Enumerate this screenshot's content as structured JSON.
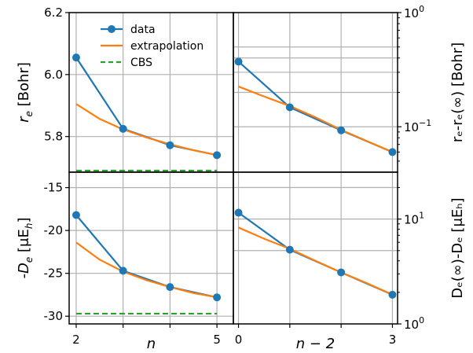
{
  "chart_data": [
    {
      "panel": "top-left",
      "type": "line",
      "xlabel": "",
      "ylabel_main": "r",
      "ylabel_sub": "e",
      "ylabel_unit": " [Bohr]",
      "xlim": [
        1.85,
        5.35
      ],
      "ylim": [
        5.685,
        6.2
      ],
      "xgrid": [
        2,
        3,
        4,
        5
      ],
      "yticks": [
        5.8,
        6.0,
        6.2
      ],
      "ytick_labels": [
        "5.8",
        "6.0",
        "6.2"
      ],
      "ygrid": [
        5.8,
        6.0,
        6.2
      ],
      "series": [
        {
          "name": "data",
          "kind": "data",
          "x": [
            2,
            3,
            4,
            5
          ],
          "y": [
            6.055,
            5.825,
            5.772,
            5.74
          ]
        },
        {
          "name": "extrapolation",
          "kind": "fit",
          "x": [
            2,
            2.5,
            3,
            3.5,
            4,
            4.5,
            5
          ],
          "y": [
            5.905,
            5.857,
            5.823,
            5.797,
            5.775,
            5.756,
            5.74
          ]
        },
        {
          "name": "CBS",
          "kind": "cbs",
          "x": [
            2,
            5
          ],
          "y": [
            5.69,
            5.69
          ]
        }
      ],
      "legend": {
        "placement": "top-left",
        "entries": [
          "data",
          "extrapolation",
          "CBS"
        ]
      }
    },
    {
      "panel": "top-right",
      "type": "line",
      "scale": "log",
      "ylabel_right": "rₑ-rₑ(∞) [Bohr]",
      "xlim": [
        -0.1,
        3.1
      ],
      "ylim": [
        0.04,
        1.0
      ],
      "xgrid": [
        0,
        1,
        2,
        3
      ],
      "yticks": [
        0.1,
        1.0
      ],
      "ytick_labels_base": [
        "10",
        "10"
      ],
      "ytick_labels_exp": [
        "−1",
        "0"
      ],
      "ygrid": [
        0.1,
        0.2,
        0.3,
        0.4,
        0.5,
        1.0
      ],
      "series": [
        {
          "name": "data",
          "kind": "data",
          "x": [
            0,
            1,
            2,
            3
          ],
          "y": [
            0.372,
            0.148,
            0.093,
            0.06
          ]
        },
        {
          "name": "extrapolation",
          "kind": "fit",
          "x": [
            0,
            0.5,
            1,
            1.5,
            2,
            2.5,
            3
          ],
          "y": [
            0.225,
            0.184,
            0.152,
            0.121,
            0.094,
            0.075,
            0.06
          ]
        }
      ]
    },
    {
      "panel": "bottom-left",
      "type": "line",
      "xlabel": "n",
      "ylabel_main": "-D",
      "ylabel_sub": "e",
      "ylabel_unit": " [μE",
      "ylabel_unit_sub": "h",
      "ylabel_close": "]",
      "xlim": [
        1.85,
        5.35
      ],
      "ylim": [
        -30.9,
        -13.2
      ],
      "xticks": [
        2,
        5
      ],
      "xtick_labels": [
        "2",
        "5"
      ],
      "xgrid": [
        2,
        3,
        4,
        5
      ],
      "yticks": [
        -30,
        -25,
        -20,
        -15
      ],
      "ytick_labels": [
        "-30",
        "-25",
        "-20",
        "-15"
      ],
      "ygrid": [
        -30,
        -25,
        -20,
        -15
      ],
      "series": [
        {
          "name": "data",
          "kind": "data",
          "x": [
            2,
            3,
            4,
            5
          ],
          "y": [
            -18.2,
            -24.7,
            -26.6,
            -27.8
          ]
        },
        {
          "name": "extrapolation",
          "kind": "fit",
          "x": [
            2,
            2.5,
            3,
            3.5,
            4,
            4.5,
            5
          ],
          "y": [
            -21.4,
            -23.4,
            -24.8,
            -25.8,
            -26.6,
            -27.3,
            -27.8
          ]
        },
        {
          "name": "CBS",
          "kind": "cbs",
          "x": [
            2,
            5
          ],
          "y": [
            -29.7,
            -29.7
          ]
        }
      ]
    },
    {
      "panel": "bottom-right",
      "type": "line",
      "scale": "log",
      "xlabel": "n − 2",
      "ylabel_right": "Dₑ(∞)-Dₑ [μEₕ]",
      "xlim": [
        -0.1,
        3.1
      ],
      "ylim": [
        1.0,
        28.0
      ],
      "xticks": [
        0,
        3
      ],
      "xtick_labels": [
        "0",
        "3"
      ],
      "xgrid": [
        0,
        1,
        2,
        3
      ],
      "yticks": [
        1,
        10
      ],
      "ytick_labels_base": [
        "10",
        "10"
      ],
      "ytick_labels_exp": [
        "0",
        "1"
      ],
      "ygrid": [
        5,
        10,
        20
      ],
      "series": [
        {
          "name": "data",
          "kind": "data",
          "x": [
            0,
            1,
            2,
            3
          ],
          "y": [
            11.5,
            5.1,
            3.1,
            1.9
          ]
        },
        {
          "name": "extrapolation",
          "kind": "fit",
          "x": [
            0,
            0.5,
            1,
            1.5,
            2,
            2.5,
            3
          ],
          "y": [
            8.3,
            6.5,
            5.2,
            4.0,
            3.1,
            2.45,
            1.9
          ]
        }
      ]
    }
  ],
  "colors": {
    "data": "#1f77b4",
    "extrapolation": "#ff7f0e",
    "cbs": "#2ca02c",
    "grid": "#b0b0b0",
    "axis": "#000000"
  }
}
